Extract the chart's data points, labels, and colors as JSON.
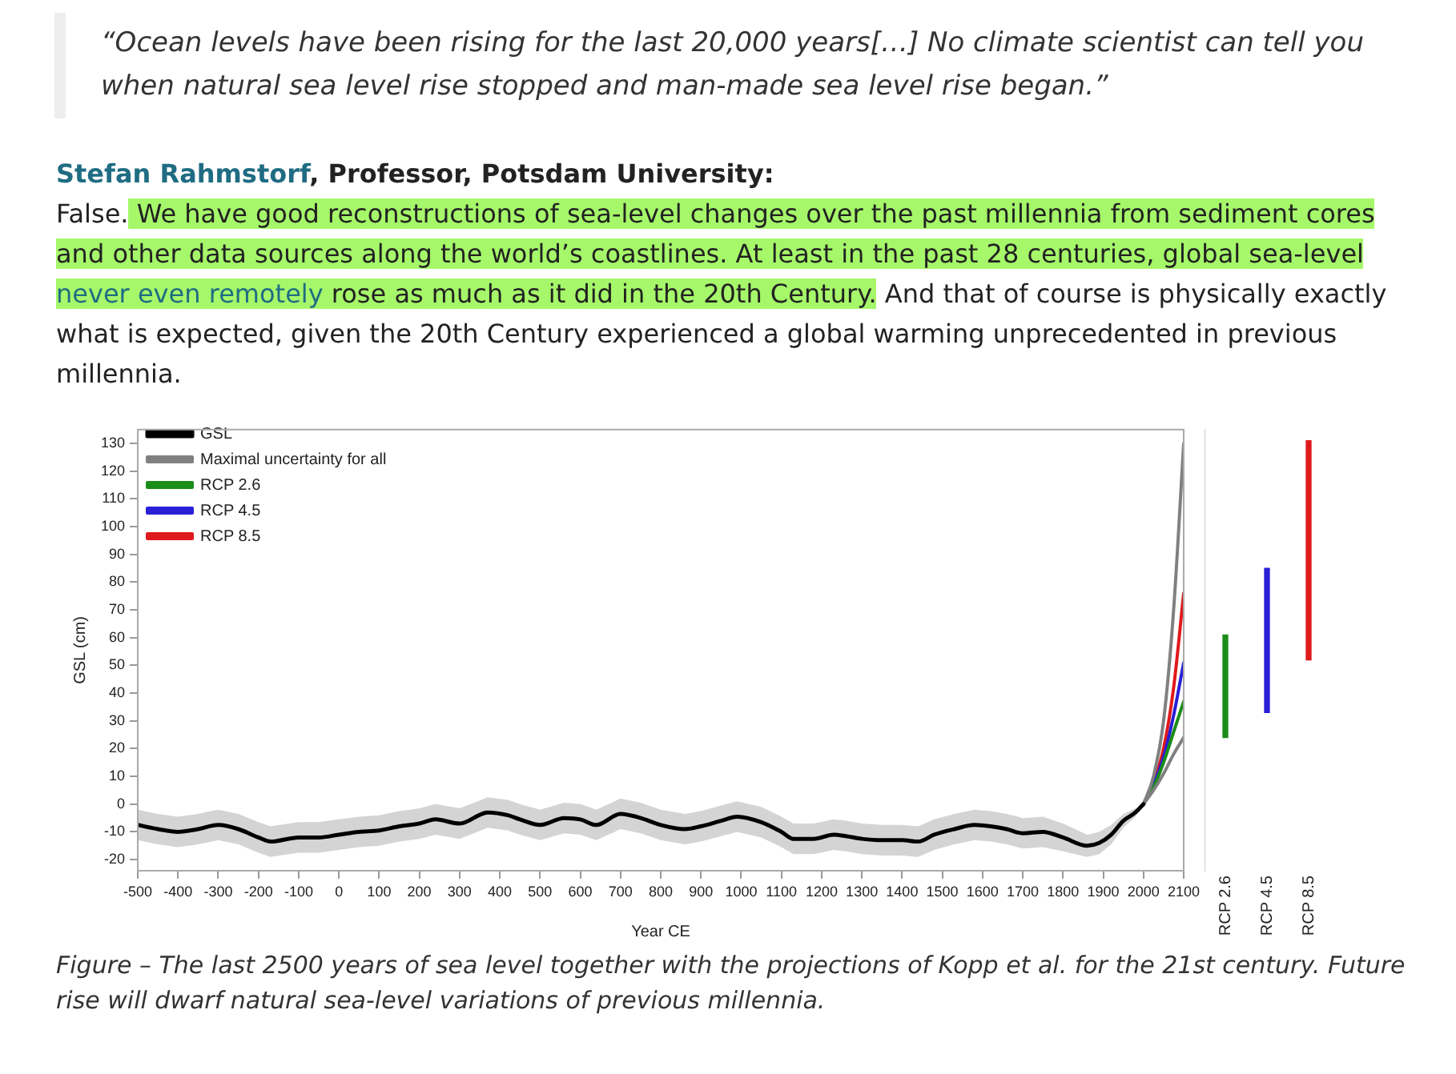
{
  "chart_data": [
    {
      "type": "line",
      "xlabel": "Year CE",
      "ylabel": "GSL (cm)",
      "xlim": [
        -500,
        2100
      ],
      "xticks": [
        -500,
        -400,
        -300,
        -200,
        -100,
        0,
        100,
        200,
        300,
        400,
        500,
        600,
        700,
        800,
        900,
        1000,
        1100,
        1200,
        1300,
        1400,
        1500,
        1600,
        1700,
        1800,
        1900,
        2000,
        2100
      ],
      "ylim": [
        -24,
        135
      ],
      "yticks": [
        -20,
        -10,
        0,
        10,
        20,
        30,
        40,
        50,
        60,
        70,
        80,
        90,
        100,
        110,
        120,
        130
      ],
      "grid": false,
      "legend": "top left",
      "line_style": "solid",
      "marker": "none",
      "annotations": [
        "“Ocean levels have been rising for the last 20,000 years[…] No climate scientist can tell you when natural sea level rise stopped and man-made sea level rise began.”",
        "Stefan Rahmstorf",
        ", Professor, Potsdam University:",
        "False.",
        " We have good reconstructions of sea-level changes over the past millennia from sediment cores and other data sources along the world’s coastlines. At least in the past 28 centuries, global sea-level ",
        "never even remotely",
        " rose as much as it did in the 20th Century.",
        " And that of course is physically exactly what is expected, given the 20th Century experienced a global warming unprecedented in previous millennia.",
        "Figure – The last 2500 years of sea level together with the projections of Kopp et al. for the 21st century. Future rise will dwarf natural sea-level variations of previous millennia."
      ],
      "series": [
        {
          "name": "GSL",
          "color": "#000000",
          "x": [
            -500,
            -450,
            -400,
            -350,
            -300,
            -250,
            -200,
            -170,
            -100,
            -50,
            0,
            50,
            100,
            150,
            200,
            240,
            300,
            370,
            420,
            450,
            500,
            560,
            600,
            640,
            700,
            750,
            800,
            860,
            900,
            950,
            990,
            1050,
            1100,
            1130,
            1180,
            1230,
            1260,
            1300,
            1350,
            1400,
            1440,
            1480,
            1530,
            1580,
            1620,
            1660,
            1700,
            1750,
            1800,
            1860,
            1890,
            1920,
            1950,
            1980,
            2000
          ],
          "values": [
            -7.5,
            -9,
            -10,
            -9,
            -7.5,
            -9,
            -12,
            -13.5,
            -12,
            -12,
            -11,
            -10,
            -9.5,
            -8,
            -7,
            -5.5,
            -7,
            -3,
            -4,
            -5.5,
            -7.5,
            -5,
            -5.5,
            -7.5,
            -3.5,
            -5,
            -7.5,
            -9,
            -8,
            -6,
            -4.5,
            -6.5,
            -10,
            -12.5,
            -12.5,
            -11,
            -11.5,
            -12.5,
            -13,
            -13,
            -13.5,
            -11,
            -9,
            -7.5,
            -8,
            -9,
            -10.5,
            -10,
            -12,
            -15,
            -14,
            -11,
            -6,
            -3,
            0
          ],
          "lower": [
            -13,
            -14.5,
            -15.5,
            -14.5,
            -13,
            -14.5,
            -17.5,
            -19,
            -17.5,
            -17.5,
            -16.5,
            -15.5,
            -15,
            -13.5,
            -12.5,
            -11,
            -12.5,
            -8.5,
            -9.5,
            -11,
            -13,
            -10.5,
            -11,
            -13,
            -9,
            -10.5,
            -13,
            -14.5,
            -13.5,
            -11.5,
            -10,
            -12,
            -15.5,
            -18,
            -18,
            -16.5,
            -17,
            -18,
            -18.5,
            -18.5,
            -19,
            -16.5,
            -14.5,
            -13,
            -13.5,
            -14.5,
            -16,
            -15.5,
            -17,
            -19,
            -18,
            -14.5,
            -8.5,
            -4.5,
            0
          ],
          "upper": [
            -2,
            -3.5,
            -4.5,
            -3.5,
            -2,
            -3.5,
            -6.5,
            -8,
            -6.5,
            -6.5,
            -5.5,
            -4.5,
            -4,
            -2.5,
            -1.5,
            0,
            -1.5,
            2.5,
            1.5,
            0,
            -2,
            0.5,
            0,
            -2,
            2,
            0.5,
            -2,
            -3.5,
            -2.5,
            -0.5,
            1,
            -1,
            -4.5,
            -7,
            -7,
            -5.5,
            -6,
            -7,
            -7.5,
            -7.5,
            -8,
            -5.5,
            -3.5,
            -2,
            -2.5,
            -3.5,
            -5,
            -4.5,
            -7,
            -11,
            -10,
            -7.5,
            -3.5,
            -1.5,
            0
          ]
        },
        {
          "name": "Maximal uncertainty for all",
          "color": "#808080",
          "x": [
            2000,
            2025,
            2050,
            2075,
            2100
          ],
          "values": [
            0,
            10,
            30,
            70,
            130
          ]
        },
        {
          "color": "#808080",
          "x": [
            2000,
            2025,
            2050,
            2075,
            2100
          ],
          "values": [
            0,
            5,
            11,
            18,
            24
          ]
        },
        {
          "name": "RCP 2.6",
          "color": "#1a8c1a",
          "x": [
            2000,
            2025,
            2050,
            2075,
            2100
          ],
          "values": [
            0,
            6,
            15,
            26,
            37
          ]
        },
        {
          "name": "RCP 4.5",
          "color": "#2a1fd6",
          "x": [
            2000,
            2025,
            2050,
            2075,
            2100
          ],
          "values": [
            0,
            7,
            17,
            32,
            51
          ]
        },
        {
          "name": "RCP 8.5",
          "color": "#e0191c",
          "x": [
            2000,
            2025,
            2050,
            2075,
            2100
          ],
          "values": [
            0,
            8,
            20,
            42,
            76
          ]
        }
      ]
    },
    {
      "type": "bar",
      "categories": [
        "RCP 2.6",
        "RCP 4.5",
        "RCP 8.5"
      ],
      "base": [
        24,
        33,
        52
      ],
      "values": [
        37,
        52,
        79
      ],
      "colors": [
        "#1a8c1a",
        "#2a1fd6",
        "#e0191c"
      ],
      "ylim": [
        -24,
        135
      ],
      "tick_labels": "x",
      "grid": false,
      "legend": false
    }
  ]
}
